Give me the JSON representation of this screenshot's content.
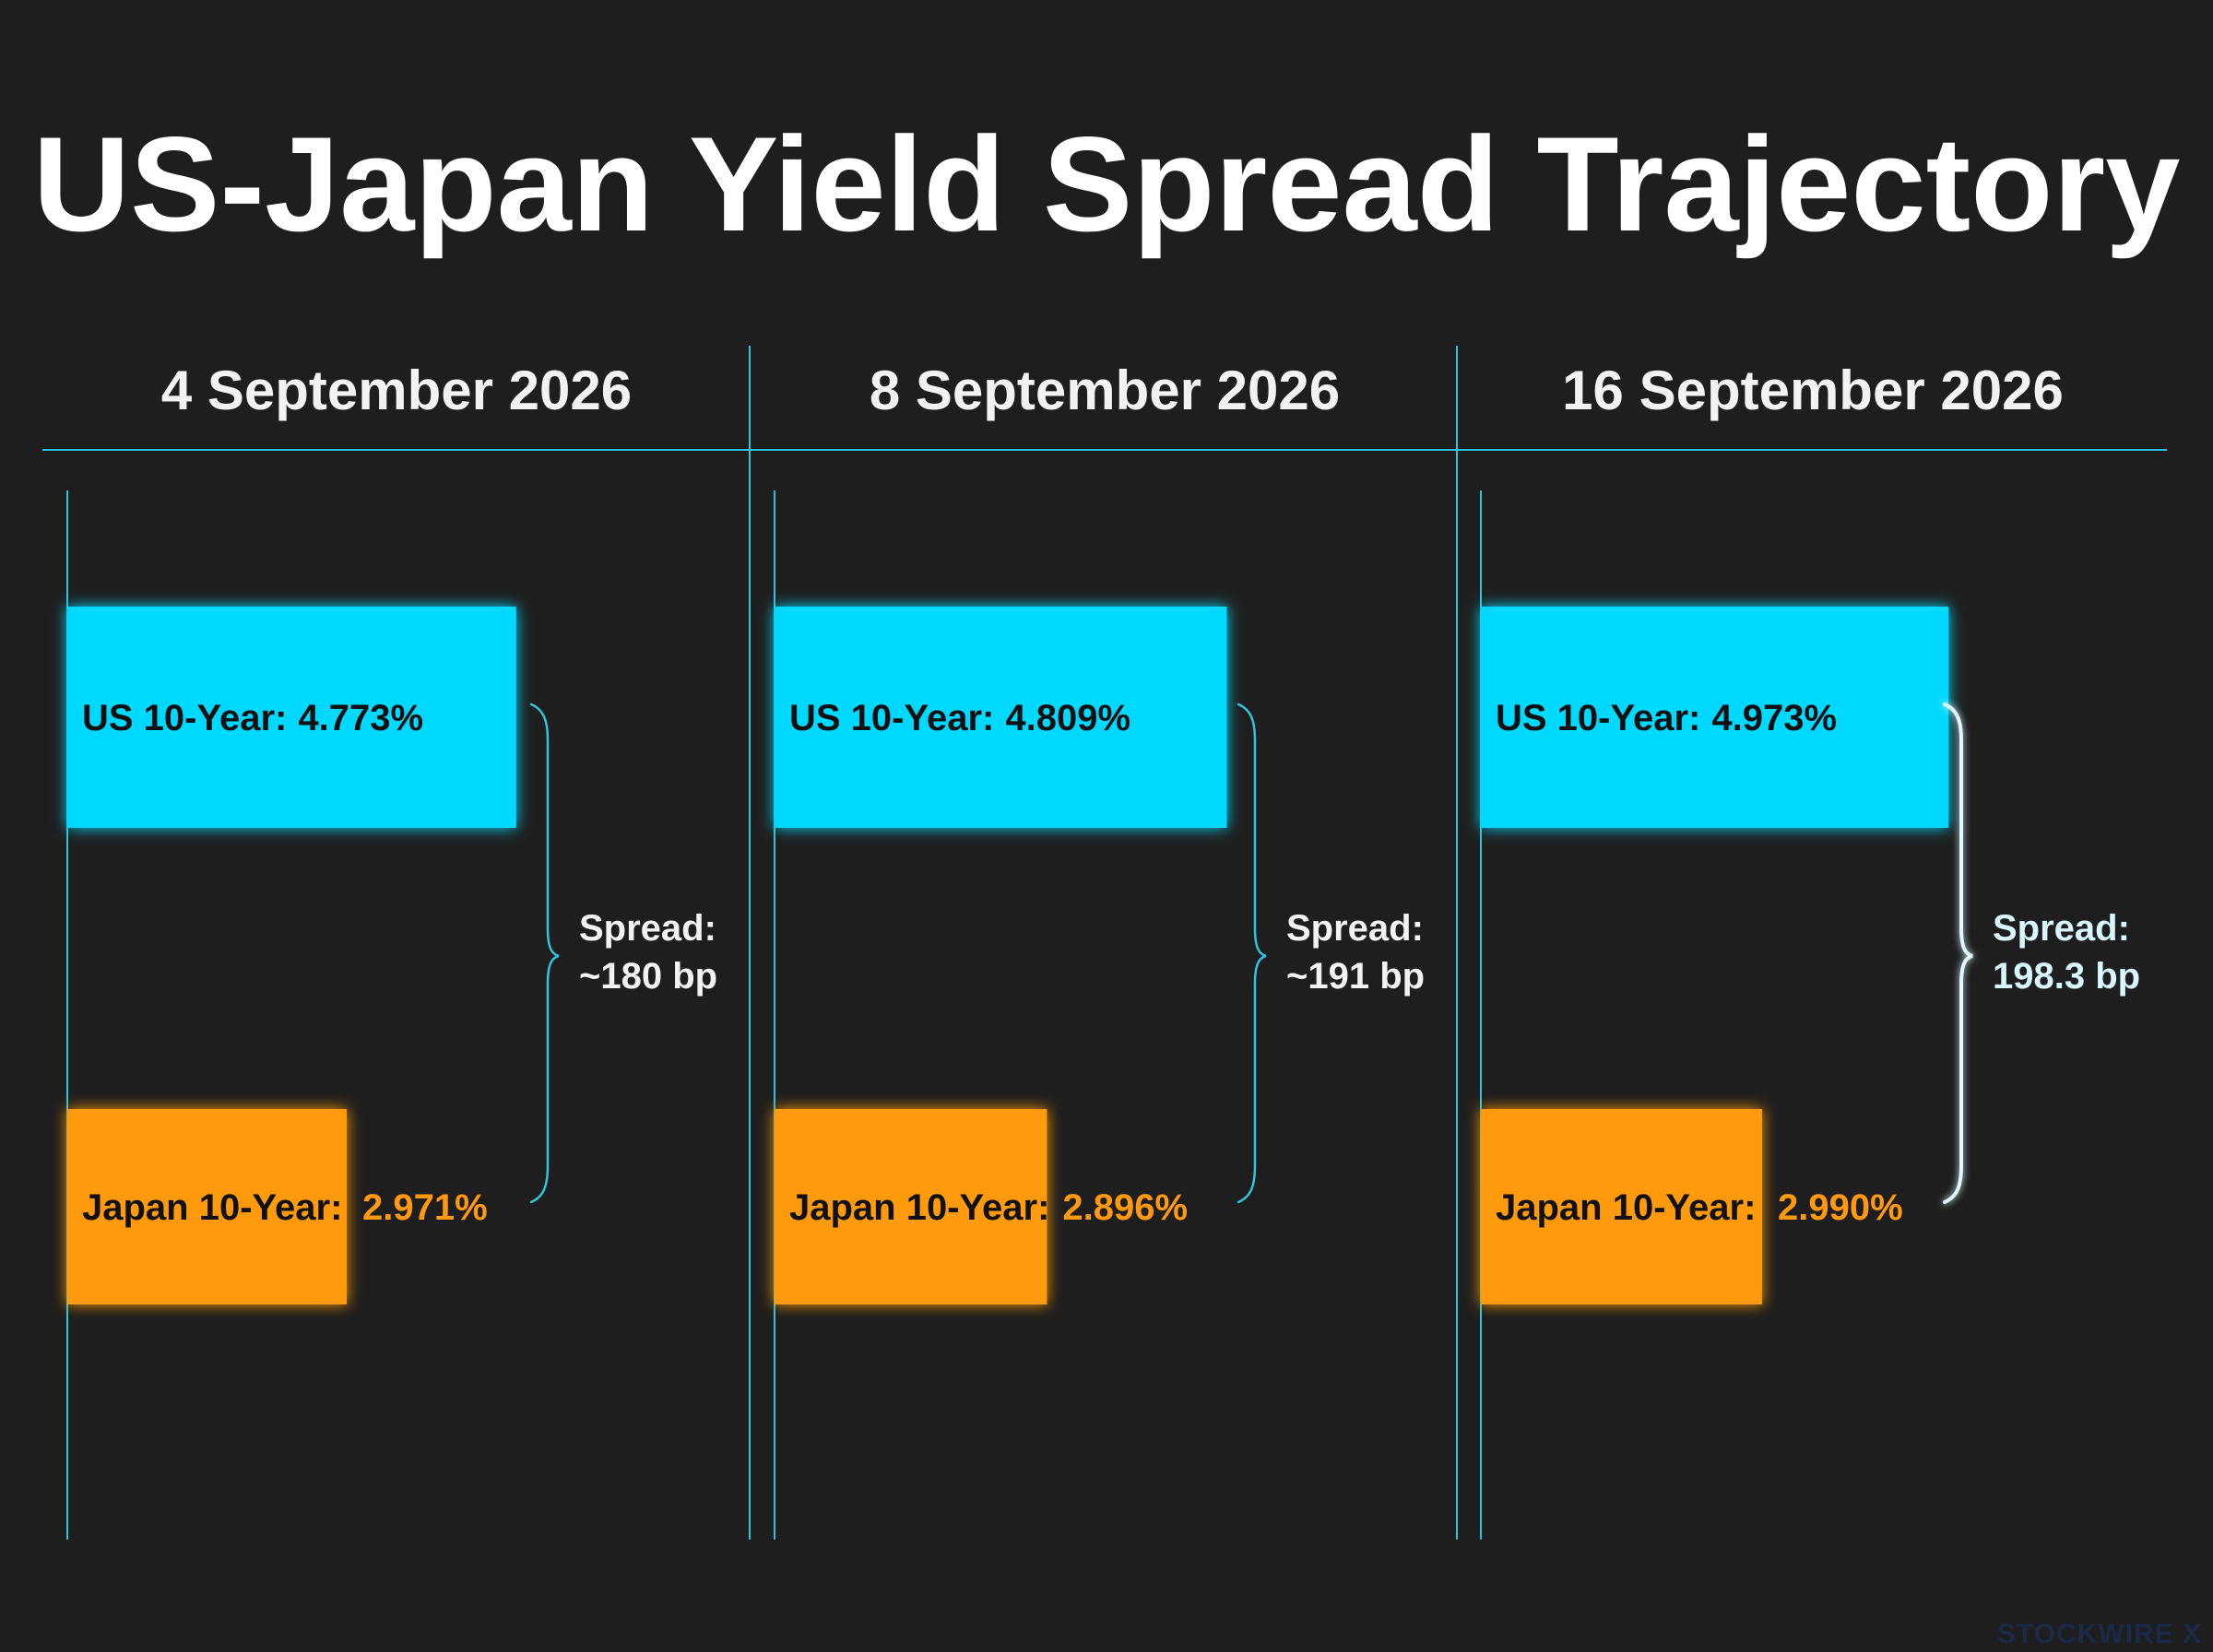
{
  "chart_data": {
    "type": "bar",
    "title": "US-Japan Yield Spread Trajectory",
    "categories": [
      "4 September 2026",
      "8 September 2026",
      "16 September 2026"
    ],
    "series": [
      {
        "name": "US 10-Year",
        "label": "US 10-Year:",
        "values": [
          4.773,
          4.809,
          4.973
        ],
        "value_labels": [
          "4.773%",
          "4.809%",
          "4.973%"
        ],
        "color": "#00d9ff"
      },
      {
        "name": "Japan 10-Year",
        "label": "Japan 10-Year:",
        "values": [
          2.971,
          2.896,
          2.99
        ],
        "value_labels": [
          "2.971%",
          "2.896%",
          "2.990%"
        ],
        "color": "#ff9a0a"
      }
    ],
    "spread": {
      "label": "Spread:",
      "values": [
        180,
        191,
        198.3
      ],
      "value_labels": [
        "~180 bp",
        "~191 bp",
        "198.3 bp"
      ],
      "highlight_index": 2
    },
    "accent_color": "#2ec4dc",
    "background_color": "#1e1e1e"
  },
  "brand": "STOCKWIRE X"
}
